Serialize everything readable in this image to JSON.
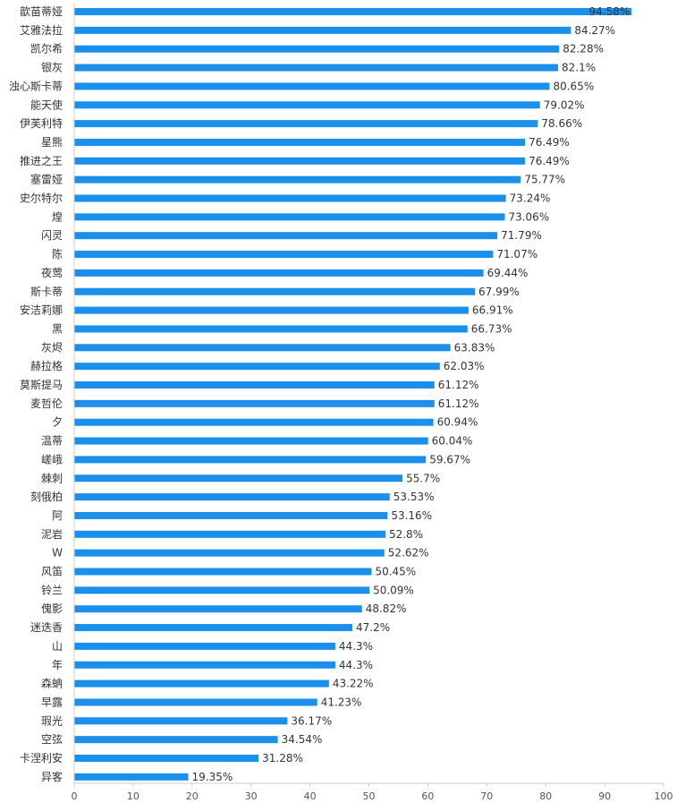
{
  "chart_data": {
    "type": "bar",
    "orientation": "horizontal",
    "categories": [
      "歆苗蒂娅",
      "艾雅法拉",
      "凯尔希",
      "银灰",
      "浊心斯卡蒂",
      "能天使",
      "伊芙利特",
      "星熊",
      "推进之王",
      "塞雷娅",
      "史尔特尔",
      "煌",
      "闪灵",
      "陈",
      "夜莺",
      "斯卡蒂",
      "安洁莉娜",
      "黑",
      "灰烬",
      "赫拉格",
      "莫斯提马",
      "麦哲伦",
      "夕",
      "温蒂",
      "嵯峨",
      "棘刺",
      "刻俄柏",
      "阿",
      "泥岩",
      "W",
      "风笛",
      "铃兰",
      "傀影",
      "迷迭香",
      "山",
      "年",
      "森蚺",
      "早露",
      "瑕光",
      "空弦",
      "卡涅利安",
      "异客"
    ],
    "values": [
      94.58,
      84.27,
      82.28,
      82.1,
      80.65,
      79.02,
      78.66,
      76.49,
      76.49,
      75.77,
      73.24,
      73.06,
      71.79,
      71.07,
      69.44,
      67.99,
      66.91,
      66.73,
      63.83,
      62.03,
      61.12,
      61.12,
      60.94,
      60.04,
      59.67,
      55.7,
      53.53,
      53.16,
      52.8,
      52.62,
      50.45,
      50.09,
      48.82,
      47.2,
      44.3,
      44.3,
      43.22,
      41.23,
      36.17,
      34.54,
      31.28,
      19.35
    ],
    "value_labels": [
      "94.58%",
      "84.27%",
      "82.28%",
      "82.1%",
      "80.65%",
      "79.02%",
      "78.66%",
      "76.49%",
      "76.49%",
      "75.77%",
      "73.24%",
      "73.06%",
      "71.79%",
      "71.07%",
      "69.44%",
      "67.99%",
      "66.91%",
      "66.73%",
      "63.83%",
      "62.03%",
      "61.12%",
      "61.12%",
      "60.94%",
      "60.04%",
      "59.67%",
      "55.7%",
      "53.53%",
      "53.16%",
      "52.8%",
      "52.62%",
      "50.45%",
      "50.09%",
      "48.82%",
      "47.2%",
      "44.3%",
      "44.3%",
      "43.22%",
      "41.23%",
      "36.17%",
      "34.54%",
      "31.28%",
      "19.35%"
    ],
    "xlim": [
      0,
      100
    ],
    "xticks": [
      "0",
      "10",
      "20",
      "30",
      "40",
      "50",
      "60",
      "70",
      "80",
      "90",
      "100"
    ],
    "bar_color": "#1a8fec",
    "grid": false,
    "legend": "none"
  }
}
